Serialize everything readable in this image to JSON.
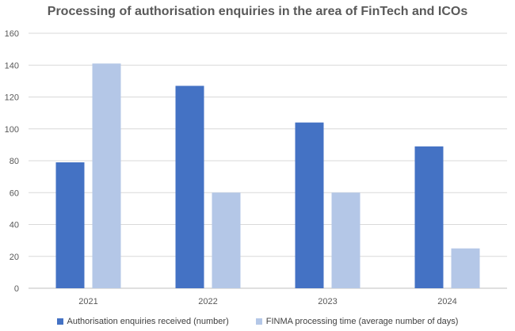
{
  "chart_data": {
    "type": "bar",
    "title": "Processing of authorisation enquiries in the area of FinTech and ICOs",
    "xlabel": "",
    "ylabel": "",
    "categories": [
      "2021",
      "2022",
      "2023",
      "2024"
    ],
    "ylim": [
      0,
      160
    ],
    "yticks": [
      0,
      20,
      40,
      60,
      80,
      100,
      120,
      140,
      160
    ],
    "grid": true,
    "legend_position": "bottom",
    "series": [
      {
        "name": "Authorisation enquiries received (number)",
        "values": [
          79,
          127,
          104,
          89
        ],
        "color": "#4472C4"
      },
      {
        "name": "FINMA processing time (average number of days)",
        "values": [
          141,
          60,
          60,
          25
        ],
        "color": "#B4C7E7"
      }
    ]
  }
}
